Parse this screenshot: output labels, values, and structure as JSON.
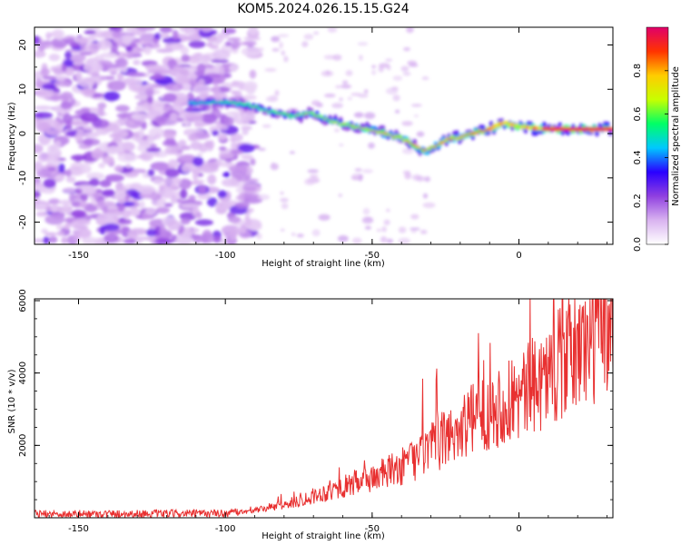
{
  "title": "KOM5.2024.026.15.15.G24",
  "chart_data": [
    {
      "type": "heatmap",
      "xlabel": "Height of straight line (km)",
      "ylabel": "Frequency (Hz)",
      "xlim": [
        -165,
        32
      ],
      "ylim": [
        -25,
        24
      ],
      "xticks": [
        -150,
        -100,
        -50,
        0
      ],
      "yticks": [
        -20,
        -10,
        0,
        10,
        20
      ],
      "colorbar": {
        "label": "Normalized spectral amplitude",
        "range": [
          0,
          1
        ],
        "ticks": [
          "0.0",
          "0.2",
          "0.4",
          "0.6",
          "0.8"
        ],
        "colormap": [
          "#ffffff",
          "#d9b3f0",
          "#9040e0",
          "#2a00ff",
          "#00c8ff",
          "#00ff66",
          "#c8ff00",
          "#ffcc00",
          "#ff3300",
          "#e0006a"
        ]
      },
      "ridge": {
        "x": [
          -112,
          -100,
          -92,
          -85,
          -78,
          -70,
          -62,
          -55,
          -48,
          -40,
          -32,
          -25,
          -18,
          -10,
          -5,
          0,
          10,
          20,
          32
        ],
        "freq": [
          7,
          7,
          6.5,
          5,
          4,
          4.5,
          2.5,
          1.5,
          0.5,
          -1,
          -4,
          -1.5,
          -0.5,
          1,
          2.5,
          1.5,
          1,
          1,
          1
        ]
      }
    },
    {
      "type": "line",
      "xlabel": "Height of straight line (km)",
      "ylabel": "SNR (10 * v/v)",
      "xlim": [
        -165,
        32
      ],
      "ylim": [
        0,
        6050
      ],
      "xticks": [
        -150,
        -100,
        -50,
        0
      ],
      "yticks": [
        2000,
        4000,
        6000
      ],
      "color": "#e83030",
      "trend": {
        "x": [
          -165,
          -100,
          -90,
          -80,
          -70,
          -60,
          -50,
          -40,
          -30,
          -20,
          -10,
          0,
          10,
          20,
          32
        ],
        "y": [
          100,
          120,
          200,
          350,
          600,
          850,
          1100,
          1400,
          1900,
          2500,
          3000,
          3300,
          4000,
          4600,
          5400
        ]
      }
    }
  ]
}
